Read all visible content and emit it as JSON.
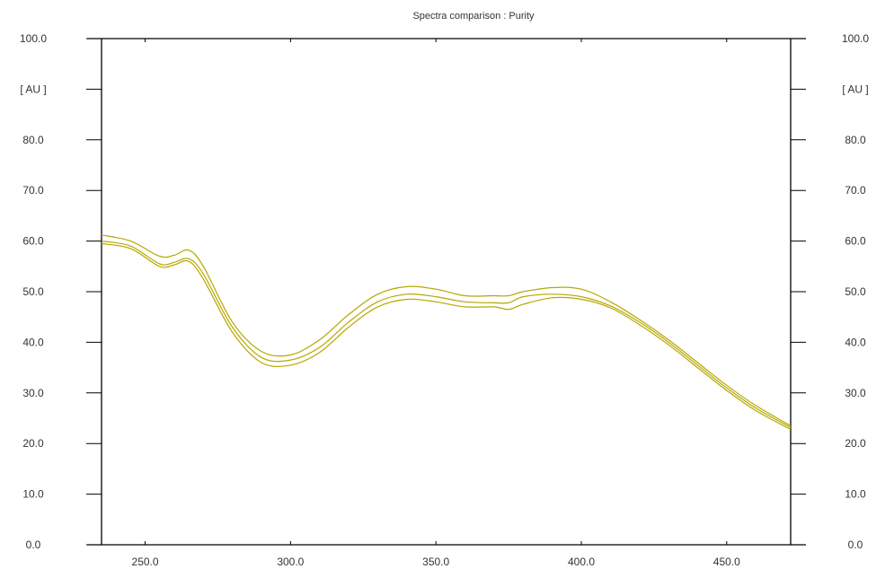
{
  "chart_data": {
    "type": "line",
    "title": "Spectra comparison : Purity",
    "xlabel": "",
    "ylabel": "[ AU ]",
    "ylabel_right": "[ AU ]",
    "xlim": [
      235,
      472
    ],
    "ylim": [
      0,
      100
    ],
    "x_ticks": [
      250,
      300,
      350,
      400,
      450
    ],
    "x_tick_labels": [
      "250.0",
      "300.0",
      "350.0",
      "400.0",
      "450.0"
    ],
    "y_tick_labels": [
      {
        "value": 100,
        "label": "100.0"
      },
      {
        "value": 90,
        "label": "[ AU ]"
      },
      {
        "value": 80,
        "label": "80.0"
      },
      {
        "value": 70,
        "label": "70.0"
      },
      {
        "value": 60,
        "label": "60.0"
      },
      {
        "value": 50,
        "label": "50.0"
      },
      {
        "value": 40,
        "label": "40.0"
      },
      {
        "value": 30,
        "label": "30.0"
      },
      {
        "value": 20,
        "label": "20.0"
      },
      {
        "value": 10,
        "label": "10.0"
      },
      {
        "value": 0,
        "label": "0.0"
      }
    ],
    "grid": false,
    "series": [
      {
        "x": [
          235,
          245,
          255,
          260,
          265,
          270,
          280,
          290,
          300,
          310,
          320,
          330,
          340,
          350,
          360,
          370,
          375,
          380,
          390,
          400,
          410,
          420,
          430,
          440,
          450,
          460,
          472
        ],
        "y": [
          61.2,
          60.0,
          57.0,
          57.2,
          58.2,
          55.0,
          44.0,
          38.2,
          37.5,
          40.5,
          45.5,
          49.5,
          51.0,
          50.5,
          49.2,
          49.2,
          49.2,
          50.0,
          50.8,
          50.5,
          48.0,
          44.5,
          40.5,
          36.0,
          31.5,
          27.5,
          23.5
        ]
      },
      {
        "x": [
          235,
          245,
          255,
          260,
          265,
          270,
          280,
          290,
          300,
          310,
          320,
          330,
          340,
          350,
          360,
          370,
          375,
          380,
          390,
          400,
          410,
          420,
          430,
          440,
          450,
          460,
          472
        ],
        "y": [
          60.0,
          59.0,
          55.5,
          55.8,
          56.5,
          53.5,
          43.0,
          37.0,
          36.5,
          39.0,
          44.0,
          48.0,
          49.5,
          49.0,
          48.0,
          47.8,
          47.8,
          49.0,
          49.5,
          49.0,
          47.2,
          44.0,
          40.0,
          35.5,
          31.0,
          27.0,
          23.2
        ]
      },
      {
        "x": [
          235,
          245,
          255,
          260,
          265,
          270,
          280,
          290,
          300,
          310,
          320,
          330,
          340,
          350,
          360,
          370,
          375,
          380,
          390,
          400,
          410,
          420,
          430,
          440,
          450,
          460,
          472
        ],
        "y": [
          59.5,
          58.5,
          55.0,
          55.3,
          56.0,
          52.5,
          42.0,
          36.0,
          35.5,
          38.0,
          43.0,
          47.0,
          48.5,
          48.0,
          47.0,
          47.0,
          46.5,
          47.5,
          48.8,
          48.5,
          46.8,
          43.5,
          39.5,
          35.0,
          30.5,
          26.5,
          22.8
        ]
      }
    ],
    "line_color": "#b5a800"
  }
}
